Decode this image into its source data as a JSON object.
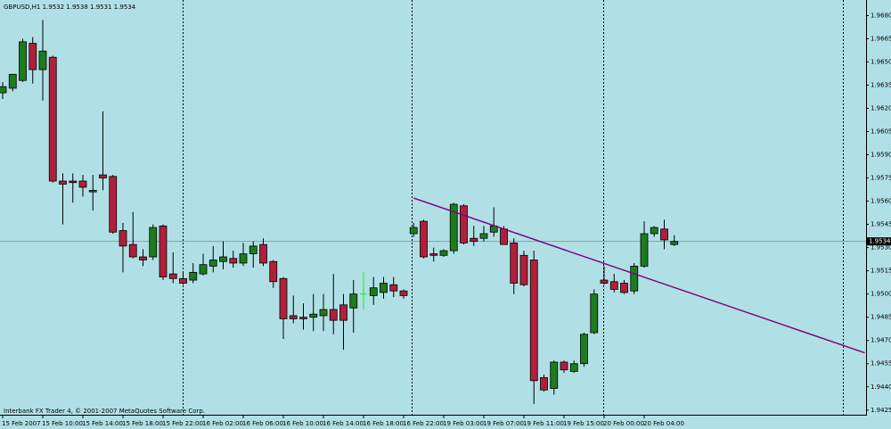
{
  "chart_data": {
    "type": "candlestick",
    "title": "GBPUSD,H1  1.9532 1.9538 1.9531 1.9534",
    "footer": "Interbank FX Trader 4, © 2001-2007 MetaQuotes Software Corp.",
    "categories": [
      "15 Feb 2007",
      null,
      null,
      null,
      "15 Feb 10:00",
      null,
      null,
      null,
      "15 Feb 14:00",
      null,
      null,
      null,
      "15 Feb 18:00",
      null,
      null,
      null,
      "15 Feb 22:00",
      null,
      null,
      null,
      "16 Feb 02:00",
      null,
      null,
      null,
      "16 Feb 06:00",
      null,
      null,
      null,
      "16 Feb 10:00",
      null,
      null,
      null,
      "16 Feb 14:00",
      null,
      null,
      null,
      "16 Feb 18:00",
      null,
      null,
      null,
      "16 Feb 22:00",
      null,
      null,
      null,
      "19 Feb 03:00",
      null,
      null,
      null,
      "19 Feb 07:00",
      null,
      null,
      null,
      "19 Feb 11:00",
      null,
      null,
      null,
      "19 Feb 15:00",
      null,
      null,
      null,
      "20 Feb 00:00",
      null,
      null,
      null,
      "20 Feb 04:00",
      null,
      null,
      null
    ],
    "open": [
      1.963,
      1.9633,
      1.9638,
      1.9662,
      1.9645,
      1.9653,
      1.9573,
      1.9573,
      1.9573,
      1.9566,
      1.9577,
      1.9576,
      1.9541,
      1.9532,
      1.9524,
      1.9524,
      1.9544,
      1.9513,
      1.951,
      1.9509,
      1.9513,
      1.9518,
      1.9521,
      1.9523,
      1.952,
      1.9526,
      1.9532,
      1.9521,
      1.951,
      1.9486,
      1.9485,
      1.9485,
      1.9486,
      1.949,
      1.9493,
      1.9491,
      1.95,
      1.9499,
      1.9501,
      1.9506,
      1.9502,
      1.9539,
      1.9547,
      1.9526,
      1.9525,
      1.9528,
      1.9557,
      1.9536,
      1.9536,
      1.954,
      1.9542,
      1.9533,
      1.9525,
      1.9522,
      1.9446,
      1.9439,
      1.9456,
      1.945,
      1.9455,
      1.9475,
      1.9509,
      1.9508,
      1.9507,
      1.9502,
      1.9518,
      1.9539,
      1.9542,
      1.9532
    ],
    "high": [
      1.9637,
      1.9642,
      1.9665,
      1.9666,
      1.9677,
      1.9654,
      1.9578,
      1.9578,
      1.9577,
      1.9577,
      1.9618,
      1.9577,
      1.9546,
      1.9553,
      1.9529,
      1.9545,
      1.9545,
      1.9527,
      1.9514,
      1.952,
      1.9526,
      1.9531,
      1.9534,
      1.9528,
      1.9533,
      1.9534,
      1.9536,
      1.9522,
      1.9511,
      1.9499,
      1.9494,
      1.95,
      1.95,
      1.9513,
      1.95,
      1.9509,
      1.9514,
      1.9511,
      1.9511,
      1.9511,
      1.9503,
      1.9546,
      1.9548,
      1.953,
      1.9529,
      1.9559,
      1.9558,
      1.9544,
      1.9544,
      1.9556,
      1.9544,
      1.9536,
      1.9528,
      1.9528,
      1.9448,
      1.9457,
      1.9457,
      1.9457,
      1.9475,
      1.9503,
      1.9518,
      1.9513,
      1.9509,
      1.952,
      1.9547,
      1.9544,
      1.9548,
      1.9538
    ],
    "low": [
      1.9626,
      1.9631,
      1.9637,
      1.9636,
      1.9625,
      1.9572,
      1.9545,
      1.9559,
      1.9563,
      1.9554,
      1.9567,
      1.9539,
      1.9514,
      1.9523,
      1.9518,
      1.9522,
      1.9509,
      1.9507,
      1.9506,
      1.9507,
      1.9512,
      1.9514,
      1.9516,
      1.9517,
      1.9518,
      1.9517,
      1.9518,
      1.9504,
      1.9471,
      1.9481,
      1.9477,
      1.9476,
      1.9476,
      1.9474,
      1.9464,
      1.9475,
      1.949,
      1.9493,
      1.9497,
      1.9498,
      1.9497,
      1.9537,
      1.9523,
      1.9521,
      1.9524,
      1.9526,
      1.9532,
      1.9531,
      1.9534,
      1.9537,
      1.9532,
      1.95,
      1.9505,
      1.9429,
      1.9437,
      1.9435,
      1.9449,
      1.9449,
      1.9453,
      1.9474,
      1.9506,
      1.9501,
      1.95,
      1.95,
      1.9517,
      1.9537,
      1.9529,
      1.9531
    ],
    "close": [
      1.9634,
      1.9642,
      1.9663,
      1.9645,
      1.9657,
      1.9573,
      1.9571,
      1.9572,
      1.9569,
      1.9567,
      1.9575,
      1.954,
      1.9531,
      1.9524,
      1.9522,
      1.9543,
      1.9511,
      1.951,
      1.9507,
      1.9514,
      1.9519,
      1.9522,
      1.9524,
      1.952,
      1.9526,
      1.9531,
      1.952,
      1.9508,
      1.9484,
      1.9484,
      1.9484,
      1.9487,
      1.949,
      1.9483,
      1.9483,
      1.95,
      1.95,
      1.9504,
      1.9507,
      1.9502,
      1.9499,
      1.9543,
      1.9524,
      1.9525,
      1.9528,
      1.9558,
      1.9533,
      1.9534,
      1.9539,
      1.9544,
      1.9532,
      1.9507,
      1.9506,
      1.9444,
      1.9438,
      1.9456,
      1.9451,
      1.9455,
      1.9474,
      1.95,
      1.9507,
      1.9503,
      1.9501,
      1.9518,
      1.9539,
      1.9543,
      1.9535,
      1.9534
    ],
    "up_color": "#1e7b1e",
    "down_color": "#b0203a",
    "doji_color": "#00ff00",
    "ylim": [
      1.9422,
      1.969
    ],
    "yticks": [
      {
        "value": 1.968,
        "label": "1.9680"
      },
      {
        "value": 1.9665,
        "label": "1.9665"
      },
      {
        "value": 1.965,
        "label": "1.9650"
      },
      {
        "value": 1.9635,
        "label": "1.9635"
      },
      {
        "value": 1.962,
        "label": "1.9620"
      },
      {
        "value": 1.9605,
        "label": "1.9605"
      },
      {
        "value": 1.959,
        "label": "1.9590"
      },
      {
        "value": 1.9575,
        "label": "1.9575"
      },
      {
        "value": 1.956,
        "label": "1.9560"
      },
      {
        "value": 1.9545,
        "label": "1.9545"
      },
      {
        "value": 1.953,
        "label": "1.9530"
      },
      {
        "value": 1.9515,
        "label": "1.9515"
      },
      {
        "value": 1.95,
        "label": "1.9500"
      },
      {
        "value": 1.9485,
        "label": "1.9485"
      },
      {
        "value": 1.947,
        "label": "1.9470"
      },
      {
        "value": 1.9455,
        "label": "1.9455"
      },
      {
        "value": 1.944,
        "label": "1.9440"
      },
      {
        "value": 1.9425,
        "label": "1.9425"
      }
    ],
    "current_price": {
      "value": 1.9534,
      "label": "1.9534"
    },
    "trendline": {
      "color": "#800080",
      "start": {
        "index": 41,
        "price": 1.9562
      },
      "end": {
        "index": 86,
        "price": 1.9462
      }
    },
    "grid": false
  }
}
